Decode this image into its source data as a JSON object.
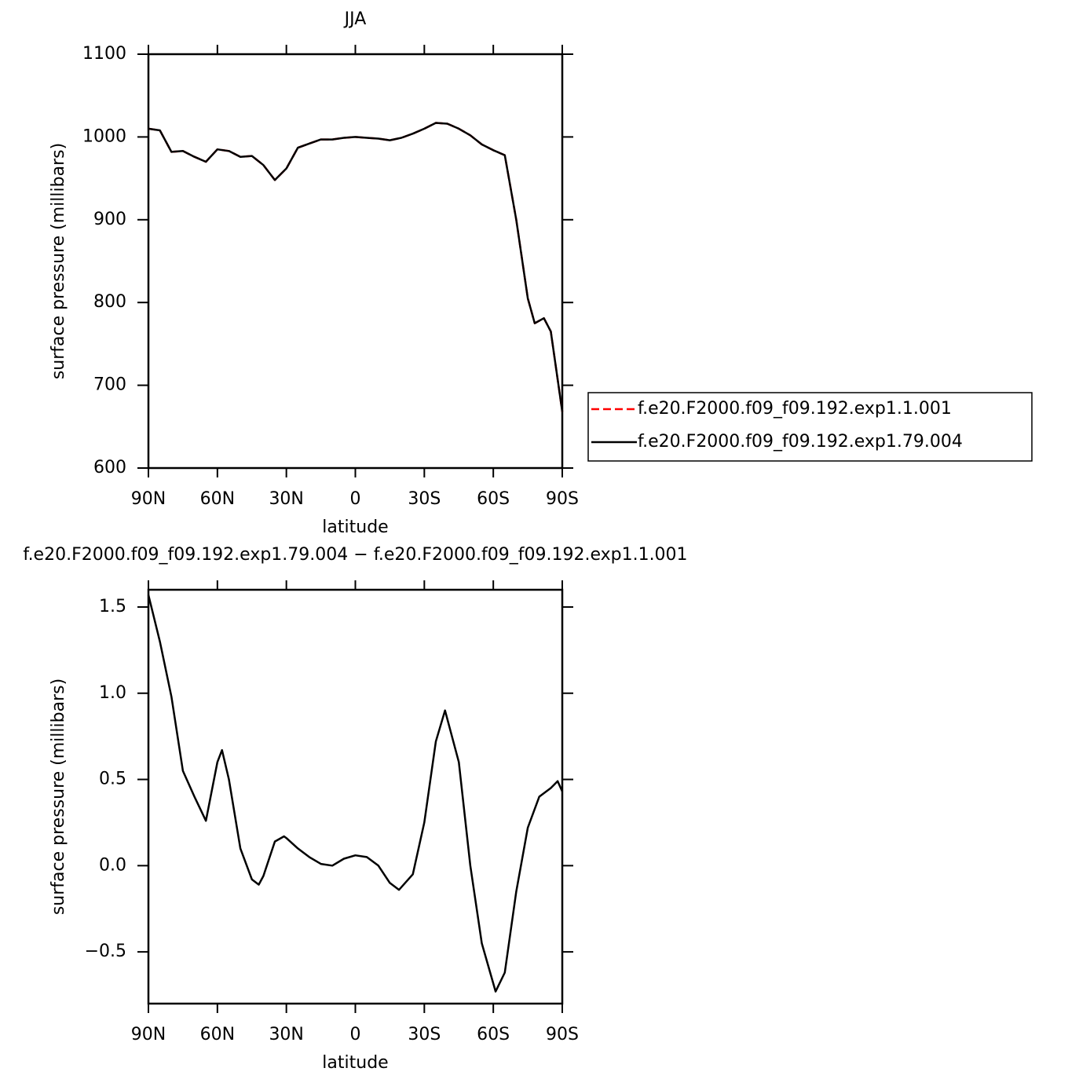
{
  "chart_data": [
    {
      "type": "line",
      "title": "JJA",
      "xlabel": "latitude",
      "ylabel": "surface pressure (millibars)",
      "x": [
        90,
        85,
        80,
        75,
        70,
        65,
        60,
        55,
        50,
        45,
        40,
        35,
        30,
        25,
        20,
        15,
        10,
        5,
        0,
        -5,
        -10,
        -15,
        -20,
        -25,
        -30,
        -35,
        -40,
        -45,
        -50,
        -55,
        -60,
        -65,
        -70,
        -75,
        -78,
        -82,
        -85,
        -90
      ],
      "series": [
        {
          "name": "f.e20.F2000.f09_f09.192.exp1.1.001",
          "color": "#ff0000",
          "dash": true,
          "values": [
            1010,
            1008,
            982,
            983,
            976,
            970,
            985,
            983,
            976,
            977,
            966,
            948,
            962,
            987,
            992,
            997,
            997,
            999,
            1000,
            999,
            998,
            996,
            999,
            1004,
            1010,
            1017,
            1016,
            1010,
            1002,
            991,
            984,
            978,
            900,
            805,
            775,
            781,
            765,
            668
          ]
        },
        {
          "name": "f.e20.F2000.f09_f09.192.exp1.79.004",
          "color": "#000000",
          "dash": false,
          "values": [
            1010,
            1008,
            982,
            983,
            976,
            970,
            985,
            983,
            976,
            977,
            966,
            948,
            962,
            987,
            992,
            997,
            997,
            999,
            1000,
            999,
            998,
            996,
            999,
            1004,
            1010,
            1017,
            1016,
            1010,
            1002,
            991,
            984,
            978,
            900,
            805,
            775,
            781,
            765,
            668
          ]
        }
      ],
      "xlim": [
        90,
        -90
      ],
      "xticks": [
        {
          "value": 90,
          "label": "90N"
        },
        {
          "value": 60,
          "label": "60N"
        },
        {
          "value": 30,
          "label": "30N"
        },
        0,
        {
          "value": -30,
          "label": "30S"
        },
        {
          "value": -60,
          "label": "60S"
        },
        {
          "value": -90,
          "label": "90S"
        }
      ],
      "ylim": [
        600,
        1100
      ],
      "yticks": [
        600,
        700,
        800,
        900,
        1000,
        1100
      ],
      "legend": "right"
    },
    {
      "type": "line",
      "title": "f.e20.F2000.f09_f09.192.exp1.79.004 − f.e20.F2000.f09_f09.192.exp1.1.001",
      "xlabel": "latitude",
      "ylabel": "surface pressure (millibars)",
      "x": [
        90,
        85,
        80,
        75,
        70,
        65,
        60,
        58,
        55,
        50,
        45,
        42,
        40,
        35,
        31,
        30,
        25,
        20,
        15,
        10,
        5,
        0,
        -5,
        -10,
        -15,
        -19,
        -25,
        -30,
        -35,
        -39,
        -45,
        -50,
        -55,
        -61,
        -65,
        -70,
        -75,
        -80,
        -85,
        -88,
        -90
      ],
      "series": [
        {
          "color": "#000000",
          "dash": false,
          "values": [
            1.57,
            1.3,
            0.98,
            0.55,
            0.4,
            0.26,
            0.6,
            0.67,
            0.5,
            0.1,
            -0.08,
            -0.11,
            -0.06,
            0.14,
            0.17,
            0.16,
            0.1,
            0.05,
            0.01,
            0.0,
            0.04,
            0.06,
            0.05,
            0.0,
            -0.1,
            -0.14,
            -0.05,
            0.25,
            0.72,
            0.9,
            0.6,
            0.0,
            -0.45,
            -0.73,
            -0.62,
            -0.15,
            0.22,
            0.4,
            0.45,
            0.49,
            0.43
          ]
        }
      ],
      "xlim": [
        90,
        -90
      ],
      "xticks": [
        {
          "value": 90,
          "label": "90N"
        },
        {
          "value": 60,
          "label": "60N"
        },
        {
          "value": 30,
          "label": "30N"
        },
        0,
        {
          "value": -30,
          "label": "30S"
        },
        {
          "value": -60,
          "label": "60S"
        },
        {
          "value": -90,
          "label": "90S"
        }
      ],
      "ylim": [
        -0.8,
        1.6
      ],
      "yticks": [
        {
          "value": -0.5,
          "label": "−0.5"
        },
        {
          "value": 0,
          "label": "0.0"
        },
        0.5,
        {
          "value": 1,
          "label": "1.0"
        },
        1.5
      ]
    }
  ]
}
